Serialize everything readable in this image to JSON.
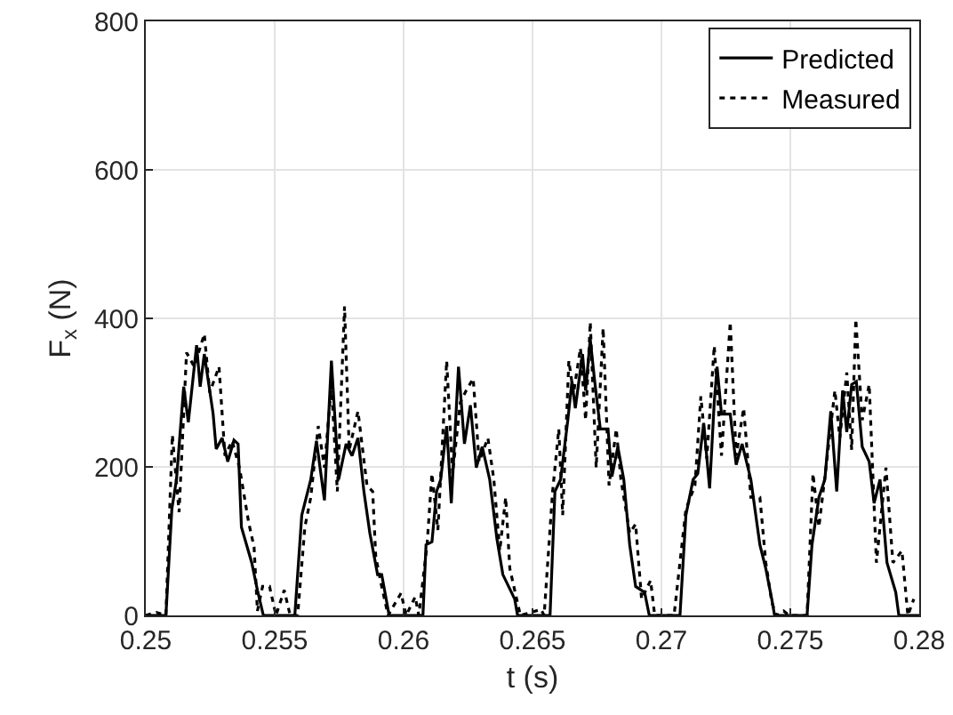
{
  "chart_data": {
    "type": "line",
    "xlabel": "t (s)",
    "ylabel": "F$_{x}$ (N)",
    "xlim": [
      0.25,
      0.28
    ],
    "xticks": [
      0.25,
      0.255,
      0.26,
      0.265,
      0.27,
      0.275,
      0.28
    ],
    "ylim": [
      0,
      800
    ],
    "yticks": [
      0,
      200,
      400,
      600,
      800
    ],
    "grid": true,
    "legend": "top right",
    "marker": "none",
    "series": [
      {
        "name": "Predicted",
        "color": "#000000",
        "line_style": "solid",
        "x": [
          0.25,
          0.25078,
          0.25101,
          0.25119,
          0.25147,
          0.25165,
          0.25197,
          0.25211,
          0.25227,
          0.25261,
          0.25273,
          0.25296,
          0.25318,
          0.25342,
          0.25358,
          0.25371,
          0.25411,
          0.25433,
          0.25456,
          0.25578,
          0.25605,
          0.2564,
          0.25662,
          0.25693,
          0.2572,
          0.25734,
          0.25748,
          0.25777,
          0.258,
          0.25823,
          0.25846,
          0.25869,
          0.25899,
          0.25915,
          0.25944,
          0.26075,
          0.26087,
          0.2611,
          0.26128,
          0.26144,
          0.26167,
          0.26185,
          0.26213,
          0.26236,
          0.26259,
          0.26282,
          0.26305,
          0.26334,
          0.26362,
          0.26385,
          0.26431,
          0.26442,
          0.26568,
          0.26587,
          0.26609,
          0.26637,
          0.26653,
          0.26666,
          0.26694,
          0.26706,
          0.26724,
          0.2674,
          0.26763,
          0.26793,
          0.26808,
          0.26831,
          0.26854,
          0.26877,
          0.269,
          0.26935,
          0.26953,
          0.27072,
          0.27095,
          0.27123,
          0.27141,
          0.27164,
          0.27187,
          0.27205,
          0.27216,
          0.27233,
          0.27267,
          0.2729,
          0.27313,
          0.27347,
          0.27382,
          0.27405,
          0.27428,
          0.27439,
          0.27565,
          0.27584,
          0.27611,
          0.27634,
          0.27657,
          0.2768,
          0.27703,
          0.27719,
          0.27738,
          0.27756,
          0.27779,
          0.27806,
          0.27825,
          0.27848,
          0.27875,
          0.27909,
          0.27921,
          0.28
        ],
        "values": [
          0,
          0,
          143,
          183,
          308,
          260,
          364,
          308,
          352,
          272,
          224,
          239,
          207,
          236,
          231,
          119,
          71,
          34,
          0,
          0,
          135,
          183,
          235,
          155,
          343,
          263,
          183,
          231,
          215,
          239,
          167,
          111,
          55,
          55,
          0,
          0,
          95,
          99,
          167,
          183,
          255,
          151,
          335,
          231,
          283,
          199,
          227,
          183,
          103,
          55,
          22,
          0,
          0,
          167,
          183,
          263,
          315,
          279,
          352,
          303,
          372,
          319,
          251,
          251,
          187,
          227,
          183,
          95,
          39,
          31,
          0,
          0,
          135,
          183,
          191,
          259,
          171,
          287,
          335,
          271,
          271,
          203,
          231,
          183,
          95,
          63,
          22,
          0,
          0,
          95,
          159,
          183,
          275,
          167,
          303,
          247,
          311,
          315,
          227,
          207,
          151,
          183,
          71,
          31,
          0,
          0
        ]
      },
      {
        "name": "Measured",
        "color": "#000000",
        "line_style": "dotted",
        "x": [
          0.25,
          0.25041,
          0.25078,
          0.25103,
          0.25129,
          0.25158,
          0.25188,
          0.25227,
          0.25248,
          0.25284,
          0.25307,
          0.25335,
          0.25364,
          0.25399,
          0.2542,
          0.25433,
          0.25453,
          0.2548,
          0.25505,
          0.25537,
          0.2556,
          0.25589,
          0.25617,
          0.2564,
          0.25669,
          0.25693,
          0.2572,
          0.25743,
          0.25771,
          0.25789,
          0.25823,
          0.25858,
          0.2588,
          0.25892,
          0.25915,
          0.2594,
          0.2599,
          0.2601,
          0.26045,
          0.26059,
          0.26091,
          0.2611,
          0.26133,
          0.26167,
          0.2619,
          0.2622,
          0.26243,
          0.2627,
          0.26293,
          0.26327,
          0.2635,
          0.26373,
          0.26396,
          0.26412,
          0.26453,
          0.26533,
          0.26545,
          0.26578,
          0.26602,
          0.26617,
          0.26641,
          0.26659,
          0.26686,
          0.26706,
          0.26724,
          0.26747,
          0.26774,
          0.26797,
          0.26825,
          0.26843,
          0.26877,
          0.269,
          0.26923,
          0.26958,
          0.26974,
          0.27049,
          0.27095,
          0.2713,
          0.27153,
          0.27176,
          0.27205,
          0.27233,
          0.27267,
          0.2729,
          0.27319,
          0.27347,
          0.27382,
          0.27405,
          0.27428,
          0.27445,
          0.27474,
          0.27495,
          0.27565,
          0.27588,
          0.27611,
          0.27641,
          0.27673,
          0.27692,
          0.27719,
          0.27738,
          0.27754,
          0.27779,
          0.27806,
          0.27834,
          0.27871,
          0.27898,
          0.27933,
          0.27956,
          0.27979
        ],
        "values": [
          0,
          4,
          0,
          243,
          139,
          354,
          335,
          379,
          300,
          335,
          215,
          235,
          198,
          125,
          92,
          6,
          39,
          39,
          0,
          34,
          0,
          0,
          119,
          159,
          255,
          199,
          311,
          167,
          416,
          223,
          275,
          175,
          167,
          79,
          39,
          0,
          30,
          0,
          25,
          0,
          95,
          191,
          115,
          343,
          191,
          287,
          303,
          319,
          207,
          239,
          183,
          87,
          159,
          63,
          0,
          8,
          0,
          167,
          251,
          135,
          343,
          299,
          360,
          263,
          395,
          199,
          387,
          175,
          251,
          183,
          111,
          123,
          22,
          47,
          0,
          0,
          143,
          175,
          295,
          211,
          363,
          215,
          395,
          215,
          279,
          159,
          159,
          71,
          18,
          0,
          6,
          0,
          0,
          191,
          119,
          207,
          303,
          239,
          327,
          223,
          399,
          263,
          311,
          71,
          199,
          71,
          87,
          0,
          22
        ]
      }
    ]
  }
}
